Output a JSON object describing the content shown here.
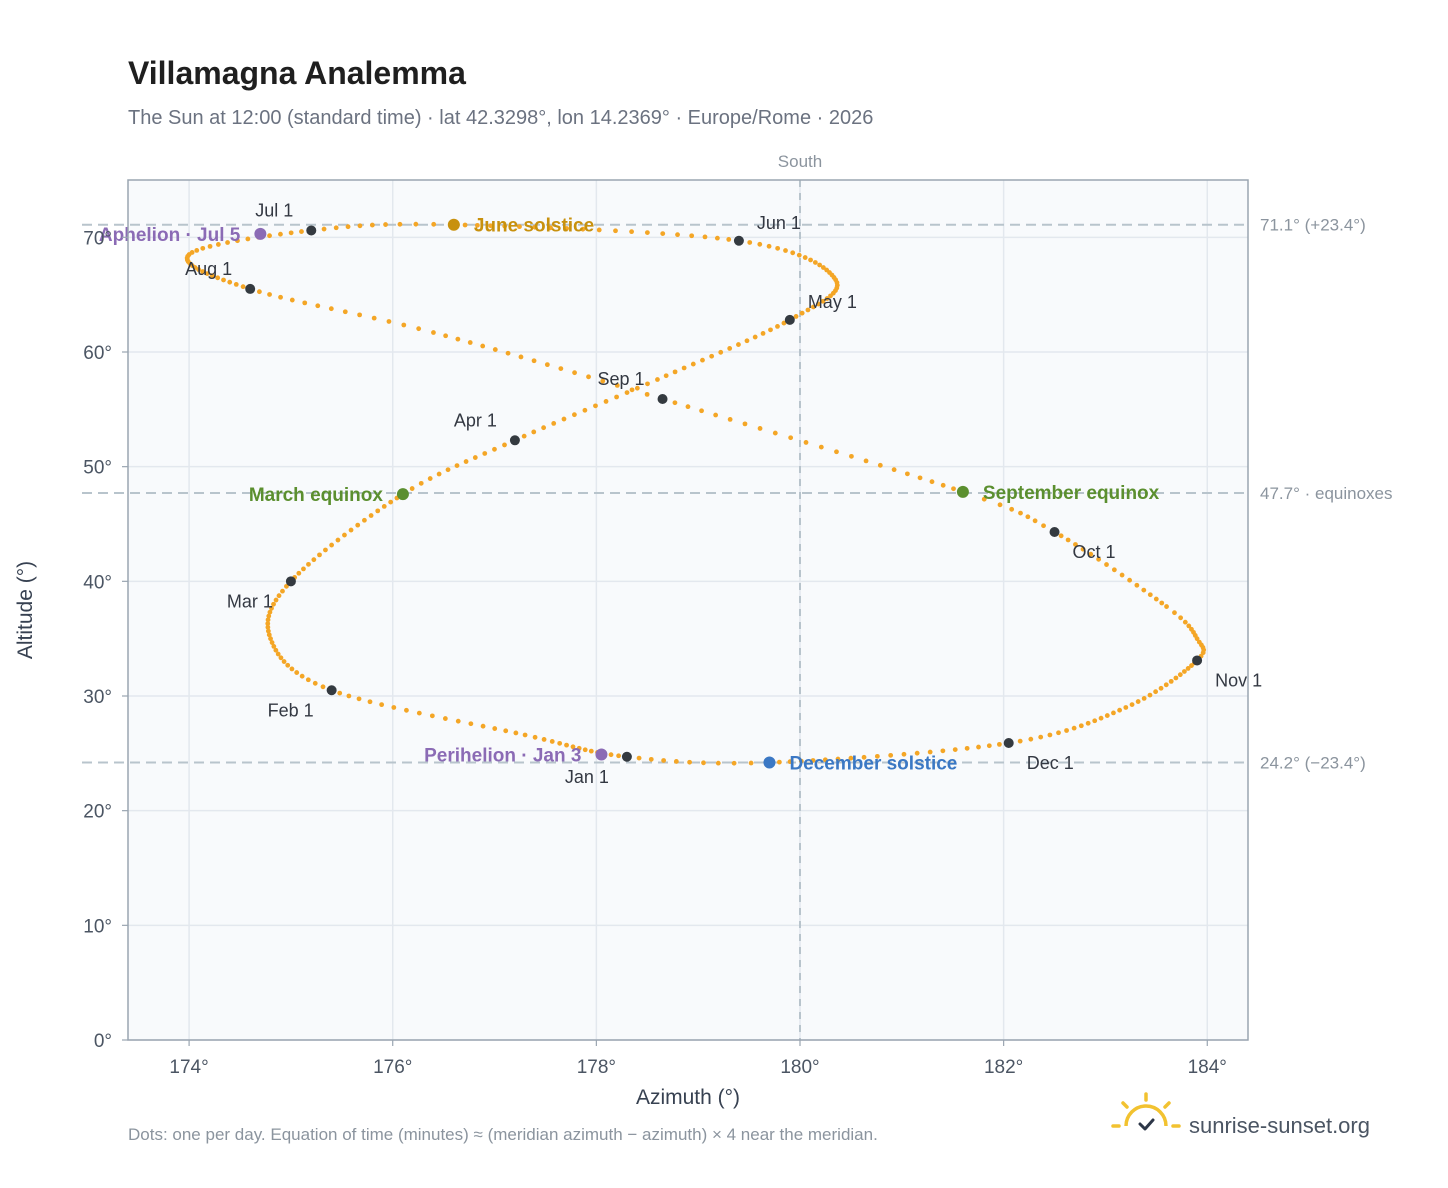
{
  "title": "Villamagna Analemma",
  "subtitle": "The Sun at 12:00 (standard time) · lat 42.3298°, lon 14.2369° · Europe/Rome · 2026",
  "footnote": "Dots: one per day. Equation of time (minutes) ≈ (meridian azimuth − azimuth) × 4 near the meridian.",
  "brand": {
    "name": "sunrise-sunset.org",
    "icon": "sun-logo-icon"
  },
  "colors": {
    "path": "#f4a626",
    "month_dot": "#343a40",
    "june_solstice": "#c8910e",
    "december_solstice": "#3b78c4",
    "equinox": "#5b8f2f",
    "apsis": "#8b6bb5",
    "reference_line": "#b8c4cc",
    "plot_bg": "#f8fafc",
    "grid": "#e3e8ee"
  },
  "chart_data": {
    "type": "scatter",
    "title": "Villamagna Analemma",
    "subtitle": "The Sun at 12:00 (standard time) · lat 42.3298°, lon 14.2369° · Europe/Rome · 2026",
    "xlabel": "Azimuth (°)",
    "ylabel": "Altitude (°)",
    "xlim": [
      173.4,
      184.4
    ],
    "ylim": [
      0,
      75
    ],
    "x_ticks": [
      174,
      176,
      178,
      180,
      182,
      184
    ],
    "x_tick_labels": [
      "174°",
      "176°",
      "178°",
      "180°",
      "182°",
      "184°"
    ],
    "y_ticks": [
      0,
      10,
      20,
      30,
      40,
      50,
      60,
      70
    ],
    "y_tick_labels": [
      "0°",
      "10°",
      "20°",
      "30°",
      "40°",
      "50°",
      "60°",
      "70°"
    ],
    "grid": true,
    "meridian": {
      "azimuth": 180,
      "label": "South"
    },
    "reference_lines": [
      {
        "altitude": 71.1,
        "label": "71.1° (+23.4°)"
      },
      {
        "altitude": 47.7,
        "label": "47.7° · equinoxes"
      },
      {
        "altitude": 24.2,
        "label": "24.2° (−23.4°)"
      }
    ],
    "daily_path": {
      "description_points": "key points the daily dotted path passes through (azimuth, altitude)",
      "key_points": [
        {
          "day": 1,
          "az": 178.3,
          "alt": 24.7
        },
        {
          "day": 15,
          "az": 177.3,
          "alt": 26.6
        },
        {
          "day": 32,
          "az": 175.4,
          "alt": 30.5
        },
        {
          "day": 46,
          "az": 174.8,
          "alt": 35.0
        },
        {
          "day": 60,
          "az": 175.0,
          "alt": 40.0
        },
        {
          "day": 79,
          "az": 176.1,
          "alt": 47.6
        },
        {
          "day": 91,
          "az": 177.2,
          "alt": 52.3
        },
        {
          "day": 105,
          "az": 178.6,
          "alt": 57.6
        },
        {
          "day": 121,
          "az": 179.9,
          "alt": 62.8
        },
        {
          "day": 135,
          "az": 180.35,
          "alt": 66.3
        },
        {
          "day": 152,
          "az": 179.4,
          "alt": 69.7
        },
        {
          "day": 172,
          "az": 176.6,
          "alt": 71.1
        },
        {
          "day": 182,
          "az": 175.2,
          "alt": 70.6
        },
        {
          "day": 196,
          "az": 174.0,
          "alt": 68.5
        },
        {
          "day": 213,
          "az": 174.6,
          "alt": 65.5
        },
        {
          "day": 227,
          "az": 176.4,
          "alt": 61.7
        },
        {
          "day": 244,
          "az": 178.65,
          "alt": 55.9
        },
        {
          "day": 266,
          "az": 181.6,
          "alt": 47.8
        },
        {
          "day": 274,
          "az": 182.5,
          "alt": 44.3
        },
        {
          "day": 290,
          "az": 183.6,
          "alt": 37.8
        },
        {
          "day": 298,
          "az": 183.9,
          "alt": 35.0
        },
        {
          "day": 305,
          "az": 183.9,
          "alt": 33.1
        },
        {
          "day": 320,
          "az": 183.2,
          "alt": 29.0
        },
        {
          "day": 335,
          "az": 182.05,
          "alt": 25.9
        },
        {
          "day": 355,
          "az": 179.7,
          "alt": 24.2
        },
        {
          "day": 365,
          "az": 178.3,
          "alt": 24.7
        }
      ]
    },
    "month_markers": [
      {
        "label": "Jan 1",
        "az": 178.3,
        "alt": 24.7,
        "label_pos": "below-left"
      },
      {
        "label": "Feb 1",
        "az": 175.4,
        "alt": 30.5,
        "label_pos": "below-left"
      },
      {
        "label": "Mar 1",
        "az": 175.0,
        "alt": 40.0,
        "label_pos": "below-left"
      },
      {
        "label": "Apr 1",
        "az": 177.2,
        "alt": 52.3,
        "label_pos": "above-left"
      },
      {
        "label": "May 1",
        "az": 179.9,
        "alt": 62.8,
        "label_pos": "above-right"
      },
      {
        "label": "Jun 1",
        "az": 179.4,
        "alt": 69.7,
        "label_pos": "above-right"
      },
      {
        "label": "Jul 1",
        "az": 175.2,
        "alt": 70.6,
        "label_pos": "above-left"
      },
      {
        "label": "Aug 1",
        "az": 174.6,
        "alt": 65.5,
        "label_pos": "above-left"
      },
      {
        "label": "Sep 1",
        "az": 178.65,
        "alt": 55.9,
        "label_pos": "above-left"
      },
      {
        "label": "Oct 1",
        "az": 182.5,
        "alt": 44.3,
        "label_pos": "below-right"
      },
      {
        "label": "Nov 1",
        "az": 183.9,
        "alt": 33.1,
        "label_pos": "below-right"
      },
      {
        "label": "Dec 1",
        "az": 182.05,
        "alt": 25.9,
        "label_pos": "below-right"
      }
    ],
    "events": [
      {
        "label": "June solstice",
        "az": 176.6,
        "alt": 71.1,
        "color": "#c8910e",
        "label_side": "right"
      },
      {
        "label": "December solstice",
        "az": 179.7,
        "alt": 24.2,
        "color": "#3b78c4",
        "label_side": "right"
      },
      {
        "label": "March equinox",
        "az": 176.1,
        "alt": 47.6,
        "color": "#5b8f2f",
        "label_side": "left"
      },
      {
        "label": "September equinox",
        "az": 181.6,
        "alt": 47.8,
        "color": "#5b8f2f",
        "label_side": "right"
      },
      {
        "label": "Perihelion · Jan 3",
        "az": 178.05,
        "alt": 24.9,
        "color": "#8b6bb5",
        "label_side": "left"
      },
      {
        "label": "Aphelion · Jul 5",
        "az": 174.7,
        "alt": 70.3,
        "color": "#8b6bb5",
        "label_side": "left"
      }
    ]
  }
}
